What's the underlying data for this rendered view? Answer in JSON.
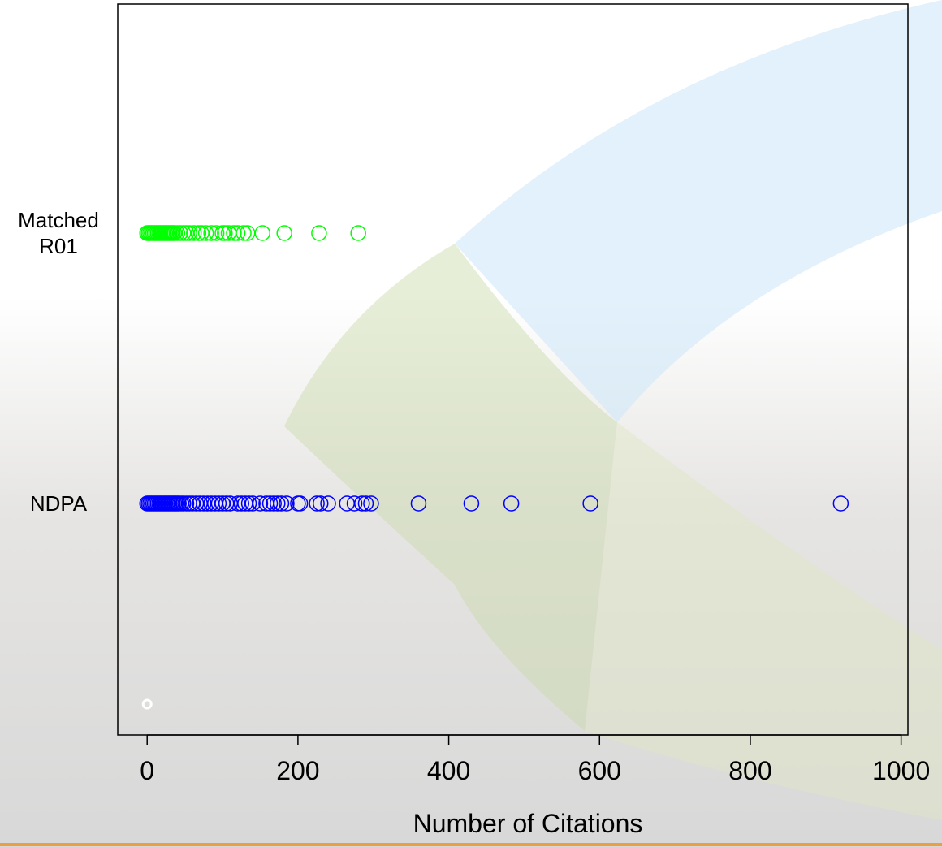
{
  "chart_data": {
    "type": "strip",
    "x_label": "Number of Citations",
    "xlim": [
      -39,
      1009
    ],
    "xticks": [
      0,
      200,
      400,
      600,
      800,
      1000
    ],
    "categories": [
      null,
      "NDPA",
      "Matched\nR01"
    ],
    "series": [
      {
        "color": "#ffffff",
        "values": [
          0
        ]
      },
      {
        "color": "#0000ff",
        "values": [
          0,
          2,
          4,
          6,
          8,
          10,
          12,
          14,
          16,
          18,
          20,
          22,
          24,
          26,
          28,
          30,
          32,
          34,
          36,
          38,
          40,
          42,
          45,
          48,
          52,
          56,
          60,
          65,
          70,
          75,
          80,
          85,
          90,
          95,
          100,
          105,
          110,
          120,
          125,
          130,
          135,
          140,
          150,
          158,
          163,
          168,
          173,
          178,
          185,
          200,
          203,
          225,
          230,
          240,
          265,
          275,
          285,
          290,
          297,
          360,
          430,
          483,
          588,
          920
        ]
      },
      {
        "color": "#00ff00",
        "values": [
          0,
          2,
          4,
          6,
          8,
          10,
          12,
          14,
          16,
          18,
          20,
          22,
          24,
          26,
          28,
          30,
          32,
          34,
          36,
          40,
          44,
          48,
          52,
          56,
          62,
          68,
          72,
          78,
          85,
          92,
          100,
          103,
          108,
          115,
          120,
          128,
          133,
          153,
          182,
          228,
          280
        ]
      }
    ]
  }
}
